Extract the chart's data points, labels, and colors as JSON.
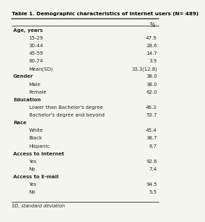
{
  "title": "Table 1. Demographic characteristics of Internet users (N= 489)",
  "col_header": "%",
  "rows": [
    {
      "label": "Age, years",
      "value": "",
      "indent": 0,
      "bold": true
    },
    {
      "label": "15-29",
      "value": "47.9",
      "indent": 1,
      "bold": false
    },
    {
      "label": "30-44",
      "value": "28.6",
      "indent": 1,
      "bold": false
    },
    {
      "label": "45-59",
      "value": "14.7",
      "indent": 1,
      "bold": false
    },
    {
      "label": "60-74",
      "value": "3.9",
      "indent": 1,
      "bold": false
    },
    {
      "label": "Mean(SD)",
      "value": "33.3(12.8)",
      "indent": 1,
      "bold": false
    },
    {
      "label": "Gender",
      "value": "38.0",
      "indent": 0,
      "bold": true
    },
    {
      "label": "Male",
      "value": "38.0",
      "indent": 1,
      "bold": false
    },
    {
      "label": "Female",
      "value": "62.0",
      "indent": 1,
      "bold": false
    },
    {
      "label": "Education",
      "value": "",
      "indent": 0,
      "bold": true
    },
    {
      "label": "Lower than Bachelor's degree",
      "value": "46.3",
      "indent": 1,
      "bold": false
    },
    {
      "label": "Bachelor's degree and beyond",
      "value": "53.7",
      "indent": 1,
      "bold": false
    },
    {
      "label": "Race",
      "value": "",
      "indent": 0,
      "bold": true
    },
    {
      "label": "White",
      "value": "45.4",
      "indent": 1,
      "bold": false
    },
    {
      "label": "Black",
      "value": "38.7",
      "indent": 1,
      "bold": false
    },
    {
      "label": "Hispanic",
      "value": "6.7",
      "indent": 1,
      "bold": false
    },
    {
      "label": "Access to Internet",
      "value": "",
      "indent": 0,
      "bold": true
    },
    {
      "label": "Yes",
      "value": "92.6",
      "indent": 1,
      "bold": false
    },
    {
      "label": "No",
      "value": "7.4",
      "indent": 1,
      "bold": false
    },
    {
      "label": "Access to E-mail",
      "value": "",
      "indent": 0,
      "bold": true
    },
    {
      "label": "Yes",
      "value": "94.5",
      "indent": 1,
      "bold": false
    },
    {
      "label": "No",
      "value": "5.5",
      "indent": 1,
      "bold": false
    }
  ],
  "footnote": "SD, standard deviation",
  "bg_color": "#f5f5f0",
  "title_color": "#000000",
  "line_color": "#555555",
  "text_color": "#222222"
}
